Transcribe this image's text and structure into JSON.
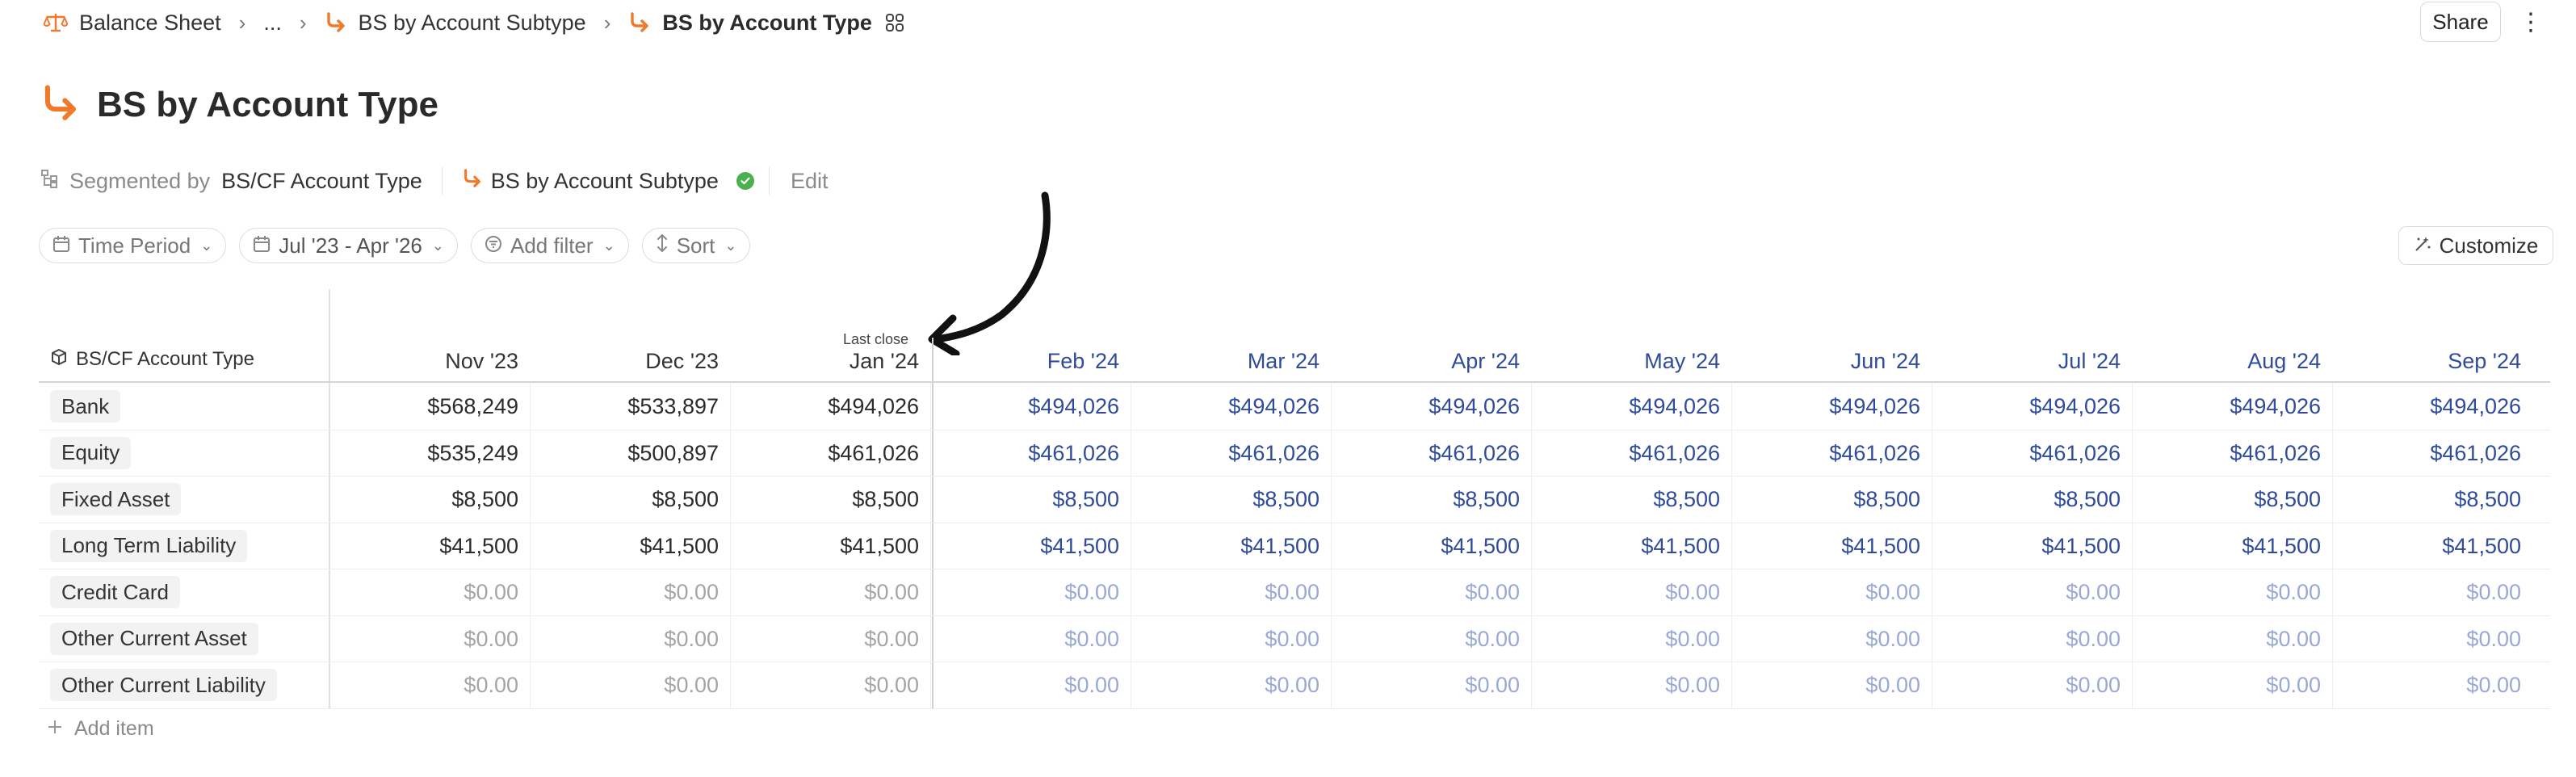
{
  "breadcrumb": {
    "items": [
      {
        "label": "Balance Sheet",
        "icon": "scale-icon"
      },
      {
        "label": "...",
        "icon": ""
      },
      {
        "label": "BS by Account Subtype",
        "icon": "link-arrow-icon"
      },
      {
        "label": "BS by Account Type",
        "icon": "link-arrow-icon"
      }
    ],
    "separator": "›"
  },
  "header": {
    "share_label": "Share",
    "more_glyph": "⋮"
  },
  "page": {
    "title": "BS by Account Type",
    "accent_color": "#f07a2a"
  },
  "segment": {
    "prefix": "Segmented by",
    "dimension": "BS/CF Account Type",
    "source": "BS by Account Subtype",
    "status_color": "#4caf50",
    "edit_label": "Edit"
  },
  "filters": {
    "time_period": "Time Period",
    "date_range": "Jul '23 - Apr '26",
    "add_filter": "Add filter",
    "sort": "Sort",
    "customize": "Customize"
  },
  "table": {
    "dimension_header": "BS/CF Account Type",
    "last_close_label": "Last close",
    "months": [
      "Nov '23",
      "Dec '23",
      "Jan '24",
      "Feb '24",
      "Mar '24",
      "Apr '24",
      "May '24",
      "Jun '24",
      "Jul '24",
      "Aug '24",
      "Sep '24"
    ],
    "past_count": 3,
    "rows": [
      {
        "label": "Bank",
        "values": [
          "$568,249",
          "$533,897",
          "$494,026",
          "$494,026",
          "$494,026",
          "$494,026",
          "$494,026",
          "$494,026",
          "$494,026",
          "$494,026",
          "$494,026"
        ]
      },
      {
        "label": "Equity",
        "values": [
          "$535,249",
          "$500,897",
          "$461,026",
          "$461,026",
          "$461,026",
          "$461,026",
          "$461,026",
          "$461,026",
          "$461,026",
          "$461,026",
          "$461,026"
        ]
      },
      {
        "label": "Fixed Asset",
        "values": [
          "$8,500",
          "$8,500",
          "$8,500",
          "$8,500",
          "$8,500",
          "$8,500",
          "$8,500",
          "$8,500",
          "$8,500",
          "$8,500",
          "$8,500"
        ]
      },
      {
        "label": "Long Term Liability",
        "values": [
          "$41,500",
          "$41,500",
          "$41,500",
          "$41,500",
          "$41,500",
          "$41,500",
          "$41,500",
          "$41,500",
          "$41,500",
          "$41,500",
          "$41,500"
        ]
      },
      {
        "label": "Credit Card",
        "values": [
          "$0.00",
          "$0.00",
          "$0.00",
          "$0.00",
          "$0.00",
          "$0.00",
          "$0.00",
          "$0.00",
          "$0.00",
          "$0.00",
          "$0.00"
        ]
      },
      {
        "label": "Other Current Asset",
        "values": [
          "$0.00",
          "$0.00",
          "$0.00",
          "$0.00",
          "$0.00",
          "$0.00",
          "$0.00",
          "$0.00",
          "$0.00",
          "$0.00",
          "$0.00"
        ]
      },
      {
        "label": "Other Current Liability",
        "values": [
          "$0.00",
          "$0.00",
          "$0.00",
          "$0.00",
          "$0.00",
          "$0.00",
          "$0.00",
          "$0.00",
          "$0.00",
          "$0.00",
          "$0.00"
        ]
      }
    ],
    "add_item_label": "Add item"
  }
}
